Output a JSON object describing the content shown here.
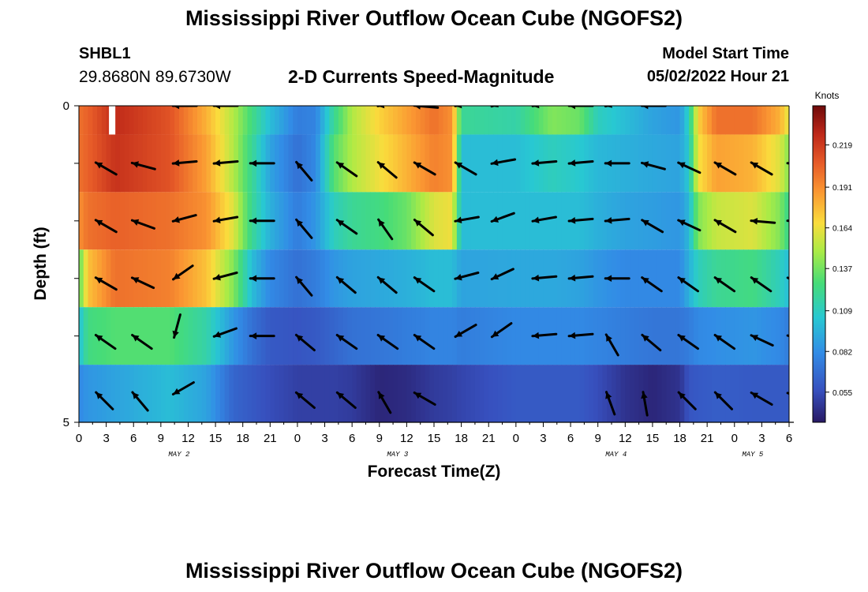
{
  "header": {
    "title": "Mississippi River Outflow Ocean Cube (NGOFS2)",
    "station_id": "SHBL1",
    "station_coords": "29.8680N  89.6730W",
    "plot_title": "2-D Currents Speed-Magnitude",
    "model_start_label": "Model Start Time",
    "model_start_value": "05/02/2022 Hour 21"
  },
  "footer": {
    "title": "Mississippi River Outflow Ocean Cube (NGOFS2)"
  },
  "chart_data": {
    "type": "heatmap",
    "title": "2-D Currents Speed-Magnitude",
    "xlabel": "Forecast Time(Z)",
    "ylabel": "Depth (ft)",
    "x_range_hours": [
      0,
      78
    ],
    "y_range_ft": [
      0,
      5
    ],
    "y_inverted": true,
    "x_tick_labels": [
      "0",
      "3",
      "6",
      "9",
      "12",
      "15",
      "18",
      "21",
      "0",
      "3",
      "6",
      "9",
      "12",
      "15",
      "18",
      "21",
      "0",
      "3",
      "6",
      "9",
      "12",
      "15",
      "18",
      "21",
      "0",
      "3",
      "6"
    ],
    "y_tick_labels": [
      "0",
      "5"
    ],
    "date_labels": [
      {
        "label": "MAY 2",
        "hour": 11
      },
      {
        "label": "MAY 3",
        "hour": 35
      },
      {
        "label": "MAY 4",
        "hour": 59
      },
      {
        "label": "MAY 5",
        "hour": 74
      }
    ],
    "colorbar": {
      "label": "Knots",
      "ticks": [
        0.055,
        0.082,
        0.109,
        0.137,
        0.164,
        0.191,
        0.219
      ],
      "range": [
        0.035,
        0.245
      ]
    },
    "depth_rows_ft": [
      0,
      1,
      2,
      3,
      4,
      5
    ],
    "speed_keyframes": [
      {
        "hour": 0,
        "values": [
          0.2,
          0.2,
          0.19,
          0.13,
          0.1,
          0.08
        ]
      },
      {
        "hour": 1,
        "values": [
          0.205,
          0.205,
          0.2,
          0.175,
          0.125,
          0.085
        ]
      },
      {
        "hour": 4,
        "values": [
          0.225,
          0.222,
          0.205,
          0.2,
          0.13,
          0.09
        ]
      },
      {
        "hour": 10,
        "values": [
          0.21,
          0.21,
          0.2,
          0.195,
          0.13,
          0.1
        ]
      },
      {
        "hour": 14,
        "values": [
          0.18,
          0.185,
          0.19,
          0.175,
          0.115,
          0.09
        ]
      },
      {
        "hour": 17,
        "values": [
          0.15,
          0.15,
          0.16,
          0.14,
          0.085,
          0.065
        ]
      },
      {
        "hour": 19,
        "values": [
          0.125,
          0.12,
          0.12,
          0.1,
          0.07,
          0.06
        ]
      },
      {
        "hour": 21,
        "values": [
          0.1,
          0.09,
          0.095,
          0.08,
          0.06,
          0.055
        ]
      },
      {
        "hour": 24,
        "values": [
          0.075,
          0.07,
          0.075,
          0.07,
          0.058,
          0.05
        ]
      },
      {
        "hour": 26,
        "values": [
          0.078,
          0.08,
          0.085,
          0.075,
          0.06,
          0.05
        ]
      },
      {
        "hour": 28,
        "values": [
          0.12,
          0.13,
          0.11,
          0.085,
          0.065,
          0.05
        ]
      },
      {
        "hour": 30,
        "values": [
          0.15,
          0.15,
          0.12,
          0.09,
          0.07,
          0.048
        ]
      },
      {
        "hour": 33,
        "values": [
          0.17,
          0.165,
          0.125,
          0.092,
          0.072,
          0.04
        ]
      },
      {
        "hour": 36,
        "values": [
          0.185,
          0.18,
          0.135,
          0.095,
          0.075,
          0.042
        ]
      },
      {
        "hour": 39,
        "values": [
          0.2,
          0.195,
          0.16,
          0.1,
          0.078,
          0.048
        ]
      },
      {
        "hour": 41,
        "values": [
          0.19,
          0.19,
          0.165,
          0.1,
          0.078,
          0.05
        ]
      },
      {
        "hour": 42,
        "values": [
          0.12,
          0.1,
          0.1,
          0.09,
          0.075,
          0.052
        ]
      },
      {
        "hour": 48,
        "values": [
          0.115,
          0.1,
          0.1,
          0.092,
          0.08,
          0.06
        ]
      },
      {
        "hour": 52,
        "values": [
          0.14,
          0.11,
          0.1,
          0.092,
          0.08,
          0.06
        ]
      },
      {
        "hour": 55,
        "values": [
          0.135,
          0.105,
          0.1,
          0.09,
          0.08,
          0.06
        ]
      },
      {
        "hour": 57,
        "values": [
          0.11,
          0.098,
          0.095,
          0.085,
          0.078,
          0.055
        ]
      },
      {
        "hour": 60,
        "values": [
          0.1,
          0.095,
          0.09,
          0.08,
          0.075,
          0.045
        ]
      },
      {
        "hour": 63,
        "values": [
          0.09,
          0.092,
          0.088,
          0.08,
          0.072,
          0.04
        ]
      },
      {
        "hour": 66,
        "values": [
          0.085,
          0.09,
          0.085,
          0.08,
          0.072,
          0.045
        ]
      },
      {
        "hour": 67,
        "values": [
          0.11,
          0.105,
          0.098,
          0.095,
          0.075,
          0.058
        ]
      },
      {
        "hour": 68,
        "values": [
          0.17,
          0.165,
          0.14,
          0.11,
          0.08,
          0.06
        ]
      },
      {
        "hour": 70,
        "values": [
          0.2,
          0.185,
          0.155,
          0.12,
          0.082,
          0.062
        ]
      },
      {
        "hour": 74,
        "values": [
          0.2,
          0.18,
          0.16,
          0.125,
          0.085,
          0.06
        ]
      },
      {
        "hour": 77,
        "values": [
          0.18,
          0.16,
          0.14,
          0.11,
          0.08,
          0.06
        ]
      },
      {
        "hour": 78,
        "values": [
          0.16,
          0.14,
          0.12,
          0.1,
          0.075,
          0.06
        ]
      }
    ],
    "missing_cells": [
      {
        "hour_start": 3.3,
        "hour_end": 4.0,
        "depth_row": 0
      }
    ],
    "vector_times_hours": [
      2,
      6,
      10.5,
      15,
      19,
      24,
      28.5,
      33,
      37,
      41.5,
      45.5,
      50,
      54,
      58,
      62,
      66,
      70,
      74,
      78
    ],
    "vector_angles_deg": [
      [
        180,
        190,
        180,
        180,
        180,
        195,
        185,
        190,
        175,
        190,
        200,
        190,
        180,
        195,
        180,
        175,
        185,
        175,
        175
      ],
      [
        150,
        165,
        185,
        185,
        180,
        130,
        145,
        140,
        150,
        150,
        190,
        185,
        185,
        180,
        165,
        155,
        150,
        150,
        175
      ],
      [
        150,
        160,
        195,
        190,
        180,
        130,
        145,
        125,
        140,
        190,
        200,
        190,
        185,
        185,
        150,
        155,
        150,
        175,
        175
      ],
      [
        150,
        155,
        215,
        195,
        180,
        130,
        140,
        140,
        145,
        195,
        205,
        185,
        185,
        180,
        145,
        145,
        145,
        145,
        155
      ],
      [
        145,
        145,
        255,
        200,
        180,
        140,
        145,
        145,
        145,
        210,
        215,
        185,
        185,
        120,
        140,
        145,
        145,
        155,
        165
      ],
      [
        135,
        130,
        210,
        0,
        0,
        140,
        140,
        120,
        150,
        0,
        0,
        0,
        0,
        110,
        100,
        135,
        135,
        150,
        160
      ]
    ],
    "vector_visible": [
      [
        0,
        0,
        1,
        1,
        0,
        0,
        0,
        1,
        1,
        1,
        1,
        1,
        1,
        1,
        1,
        0,
        0,
        0,
        0
      ],
      [
        1,
        1,
        1,
        1,
        1,
        1,
        1,
        1,
        1,
        1,
        1,
        1,
        1,
        1,
        1,
        1,
        1,
        1,
        1
      ],
      [
        1,
        1,
        1,
        1,
        1,
        1,
        1,
        1,
        1,
        1,
        1,
        1,
        1,
        1,
        1,
        1,
        1,
        1,
        1
      ],
      [
        1,
        1,
        1,
        1,
        1,
        1,
        1,
        1,
        1,
        1,
        1,
        1,
        1,
        1,
        1,
        1,
        1,
        1,
        1
      ],
      [
        1,
        1,
        1,
        1,
        1,
        1,
        1,
        1,
        1,
        1,
        1,
        1,
        1,
        1,
        1,
        1,
        1,
        1,
        1
      ],
      [
        1,
        1,
        1,
        0,
        0,
        1,
        1,
        1,
        1,
        0,
        0,
        0,
        0,
        1,
        1,
        1,
        1,
        1,
        1
      ]
    ]
  }
}
